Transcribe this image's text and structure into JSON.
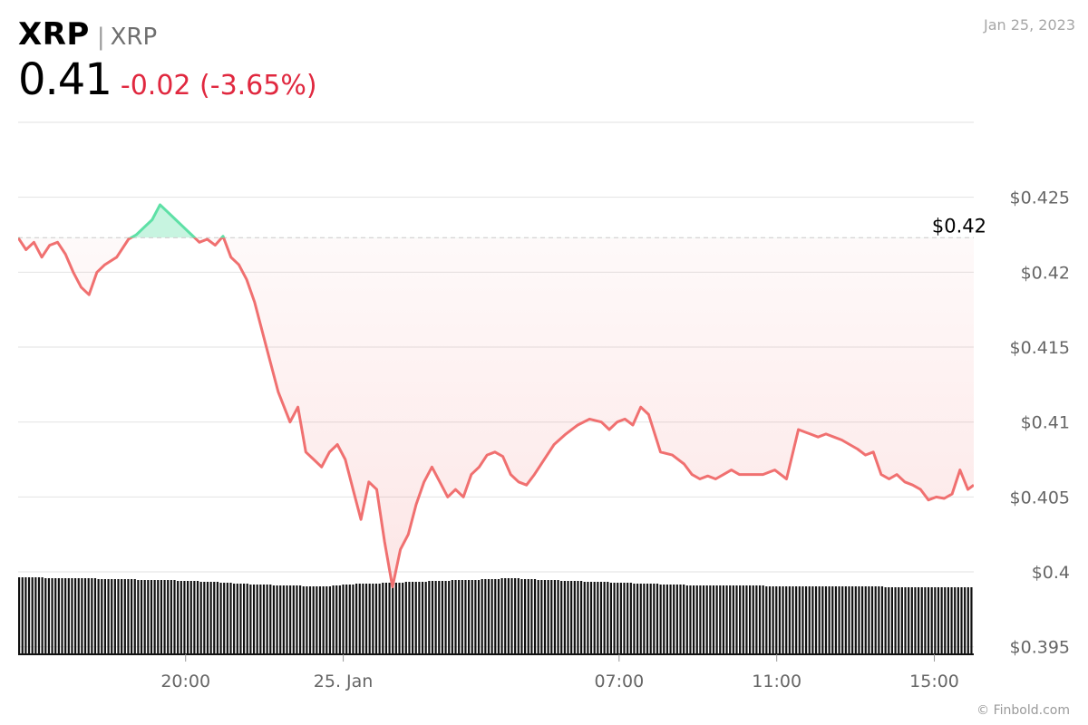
{
  "header": {
    "symbol": "XRP",
    "separator": "|",
    "name": "XRP",
    "price": "0.41",
    "change": "-0.02 (-3.65%)",
    "date": "Jan 25, 2023"
  },
  "credit": "© Finbold.com",
  "colors": {
    "down": "#f07070",
    "up": "#5ee0a6",
    "grid": "#e2e2e2",
    "volume": "#111111",
    "change_text": "#e0283f"
  },
  "chart_data": {
    "type": "line",
    "ylim": [
      0.3945,
      0.43
    ],
    "y_ticks": [
      "$0.425",
      "$0.42",
      "$0.415",
      "$0.41",
      "$0.405",
      "$0.4",
      "$0.395"
    ],
    "y_tick_values": [
      0.425,
      0.42,
      0.415,
      0.41,
      0.405,
      0.4,
      0.395
    ],
    "x_ticks": [
      "20:00",
      "25. Jan",
      "07:00",
      "11:00",
      "15:00"
    ],
    "x_tick_hours": [
      4.25,
      8.25,
      15.25,
      19.25,
      23.25
    ],
    "x_range_hours": [
      0,
      24.25
    ],
    "reference": {
      "value": 0.4223,
      "label": "$0.42"
    },
    "series": [
      {
        "x": [
          0,
          0.2,
          0.4,
          0.6,
          0.8,
          1.0,
          1.2,
          1.4,
          1.6,
          1.8,
          2.0,
          2.2,
          2.5,
          2.8,
          3.0,
          3.2,
          3.4,
          3.6,
          3.8,
          4.0,
          4.2,
          4.4,
          4.6,
          4.8,
          5.0,
          5.2,
          5.4,
          5.6,
          5.8,
          6.0,
          6.3,
          6.6,
          6.9,
          7.1,
          7.3,
          7.5,
          7.7,
          7.9,
          8.1,
          8.3,
          8.5,
          8.7,
          8.9,
          9.1,
          9.3,
          9.5,
          9.7,
          9.9,
          10.1,
          10.3,
          10.5,
          10.7,
          10.9,
          11.1,
          11.3,
          11.5,
          11.7,
          11.9,
          12.1,
          12.3,
          12.5,
          12.7,
          12.9,
          13.1,
          13.3,
          13.6,
          13.9,
          14.2,
          14.5,
          14.8,
          15.0,
          15.2,
          15.4,
          15.6,
          15.8,
          16.0,
          16.3,
          16.6,
          16.9,
          17.1,
          17.3,
          17.5,
          17.7,
          17.9,
          18.1,
          18.3,
          18.6,
          18.9,
          19.2,
          19.5,
          19.8,
          20.1,
          20.3,
          20.5,
          20.7,
          20.9,
          21.1,
          21.3,
          21.5,
          21.7,
          21.9,
          22.1,
          22.3,
          22.5,
          22.7,
          22.9,
          23.1,
          23.3,
          23.5,
          23.7,
          23.9,
          24.1,
          24.25
        ],
        "y": [
          0.4223,
          0.4215,
          0.422,
          0.421,
          0.4218,
          0.422,
          0.4212,
          0.42,
          0.419,
          0.4185,
          0.42,
          0.4205,
          0.421,
          0.4222,
          0.4225,
          0.423,
          0.4235,
          0.4245,
          0.424,
          0.4235,
          0.423,
          0.4225,
          0.422,
          0.4222,
          0.4218,
          0.4224,
          0.421,
          0.4205,
          0.4195,
          0.418,
          0.415,
          0.412,
          0.41,
          0.411,
          0.408,
          0.4075,
          0.407,
          0.408,
          0.4085,
          0.4075,
          0.4055,
          0.4035,
          0.406,
          0.4055,
          0.402,
          0.399,
          0.4015,
          0.4025,
          0.4045,
          0.406,
          0.407,
          0.406,
          0.405,
          0.4055,
          0.405,
          0.4065,
          0.407,
          0.4078,
          0.408,
          0.4077,
          0.4065,
          0.406,
          0.4058,
          0.4065,
          0.4073,
          0.4085,
          0.4092,
          0.4098,
          0.4102,
          0.41,
          0.4095,
          0.41,
          0.4102,
          0.4098,
          0.411,
          0.4105,
          0.408,
          0.4078,
          0.4072,
          0.4065,
          0.4062,
          0.4064,
          0.4062,
          0.4065,
          0.4068,
          0.4065,
          0.4065,
          0.4065,
          0.4068,
          0.4062,
          0.4095,
          0.4092,
          0.409,
          0.4092,
          0.409,
          0.4088,
          0.4085,
          0.4082,
          0.4078,
          0.408,
          0.4065,
          0.4062,
          0.4065,
          0.406,
          0.4058,
          0.4055,
          0.4048,
          0.405,
          0.4049,
          0.4052,
          0.4068,
          0.4055,
          0.4058
        ]
      }
    ],
    "volume": [
      85,
      85,
      85,
      85,
      85,
      85,
      85,
      85,
      84,
      84,
      84,
      84,
      84,
      84,
      84,
      84,
      84,
      84,
      84,
      84,
      84,
      84,
      84,
      84,
      83,
      83,
      83,
      83,
      83,
      83,
      83,
      83,
      83,
      83,
      83,
      83,
      82,
      82,
      82,
      82,
      82,
      82,
      82,
      82,
      82,
      82,
      82,
      82,
      81,
      81,
      81,
      81,
      81,
      81,
      81,
      80,
      80,
      80,
      80,
      80,
      80,
      79,
      79,
      79,
      79,
      78,
      78,
      78,
      78,
      78,
      77,
      77,
      77,
      77,
      77,
      77,
      77,
      76,
      76,
      76,
      76,
      76,
      76,
      76,
      76,
      76,
      75,
      75,
      75,
      75,
      75,
      75,
      75,
      75,
      75,
      76,
      76,
      76,
      77,
      77,
      77,
      77,
      78,
      78,
      78,
      78,
      78,
      78,
      78,
      78,
      79,
      79,
      79,
      79,
      79,
      79,
      79,
      80,
      80,
      80,
      80,
      80,
      80,
      80,
      81,
      81,
      81,
      81,
      81,
      81,
      81,
      82,
      82,
      82,
      82,
      82,
      82,
      82,
      82,
      82,
      83,
      83,
      83,
      83,
      83,
      83,
      84,
      84,
      84,
      84,
      84,
      84,
      83,
      83,
      83,
      83,
      83,
      82,
      82,
      82,
      82,
      82,
      82,
      82,
      81,
      81,
      81,
      81,
      81,
      81,
      81,
      80,
      80,
      80,
      80,
      80,
      80,
      80,
      80,
      79,
      79,
      79,
      79,
      79,
      79,
      79,
      78,
      78,
      78,
      78,
      78,
      78,
      78,
      78,
      77,
      77,
      77,
      77,
      77,
      77,
      77,
      77,
      76,
      76,
      76,
      76,
      76,
      76,
      76,
      76,
      76,
      76,
      76,
      76,
      76,
      76,
      76,
      76,
      76,
      76,
      76,
      76,
      76,
      76,
      76,
      76,
      75,
      75,
      75,
      75,
      75,
      75,
      75,
      75,
      75,
      75,
      75,
      75,
      75,
      75,
      75,
      75,
      75,
      75,
      75,
      75,
      75,
      75,
      75,
      75,
      75,
      75,
      75,
      75,
      75,
      75,
      75,
      75,
      75,
      75,
      75,
      75,
      74,
      74,
      74,
      74,
      74,
      74,
      74,
      74,
      74,
      74,
      74,
      74,
      74,
      74,
      74,
      74,
      74,
      74,
      74,
      74,
      74,
      74,
      74,
      74,
      74,
      74,
      74
    ]
  }
}
